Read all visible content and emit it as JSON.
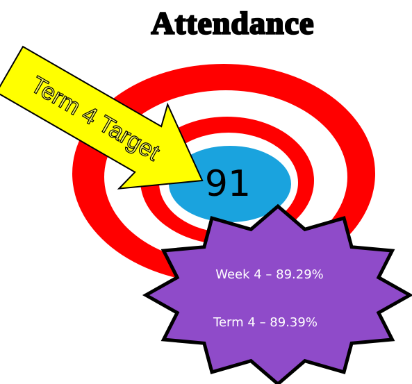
{
  "title": "Attendance",
  "target": {
    "label": "Term 4 Target",
    "value": "91"
  },
  "stats": [
    "Week 4  – 89.29%",
    "Term 4 – 89.39%"
  ]
}
